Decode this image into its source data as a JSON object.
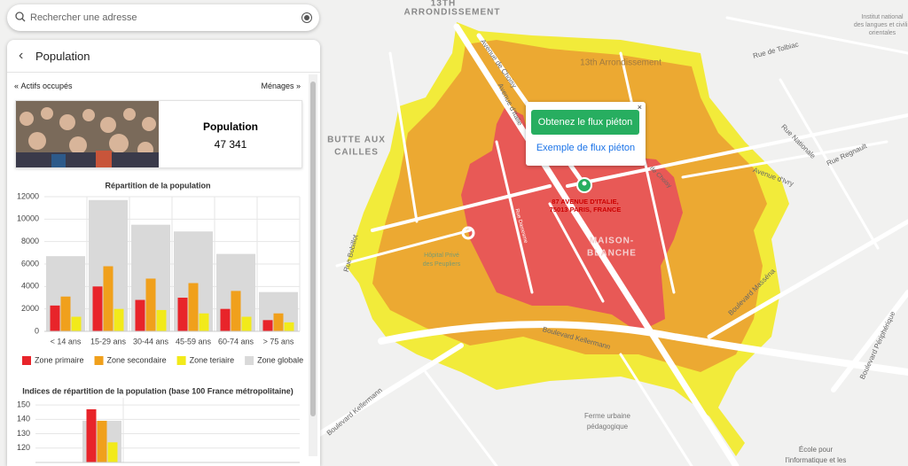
{
  "search": {
    "placeholder": "Rechercher une adresse"
  },
  "panel": {
    "title": "Population",
    "nav": {
      "previous": "Actifs occupés",
      "next": "Ménages"
    },
    "card": {
      "title": "Population",
      "value": "47 341"
    }
  },
  "chart_data": [
    {
      "type": "bar",
      "title": "Répartition de la population",
      "categories": [
        "< 14 ans",
        "15-29 ans",
        "30-44 ans",
        "45-59 ans",
        "60-74 ans",
        "> 75 ans"
      ],
      "series": [
        {
          "name": "Zone primaire",
          "color": "#e8242a",
          "values": [
            2300,
            4000,
            2800,
            3000,
            2000,
            1000
          ]
        },
        {
          "name": "Zone secondaire",
          "color": "#f0a01c",
          "values": [
            3100,
            5800,
            4700,
            4300,
            3600,
            1600
          ]
        },
        {
          "name": "Zone teriaire",
          "color": "#f2ea1a",
          "values": [
            1300,
            2000,
            1900,
            1600,
            1300,
            800
          ]
        },
        {
          "name": "Zone globale",
          "color": "#d9d9d9",
          "values": [
            6700,
            11700,
            9500,
            8900,
            6900,
            3500
          ]
        }
      ],
      "ylim": [
        0,
        12000
      ],
      "yticks": [
        0,
        2000,
        4000,
        6000,
        8000,
        10000,
        12000
      ],
      "grid": true,
      "legend": "bottom"
    },
    {
      "type": "bar",
      "title": "Indices de répartition de la population (base 100 France métropolitaine)",
      "categories": [
        null
      ],
      "series": [
        {
          "name": "Zone primaire",
          "color": "#e8242a",
          "values": [
            147
          ]
        },
        {
          "name": "Zone secondaire",
          "color": "#f0a01c",
          "values": [
            139
          ]
        },
        {
          "name": "Zone teriaire",
          "color": "#f2ea1a",
          "values": [
            124
          ]
        },
        {
          "name": "Zone globale",
          "color": "#d9d9d9",
          "values": [
            139
          ]
        }
      ],
      "ylim": [
        110,
        155
      ],
      "yticks": [
        120,
        130,
        140,
        150
      ],
      "grid": true
    }
  ],
  "popup": {
    "close": "×",
    "button": "Obtenez le flux piéton",
    "link": "Exemple de flux piéton"
  },
  "marker": {
    "address_line1": "87 AVENUE D'ITALIE,",
    "address_line2": "75013 PARIS, FRANCE"
  },
  "map": {
    "labels": [
      {
        "text": "13TH"
      },
      {
        "text": "ARRONDISSEMENT"
      },
      {
        "text": "Avenue de Choisy"
      },
      {
        "text": "13th Arrondissement"
      },
      {
        "text": "Rue de Tolbiac"
      },
      {
        "text": "Institut national"
      },
      {
        "text": "des langues et civilis"
      },
      {
        "text": "orientales"
      },
      {
        "text": "BUTTE AUX"
      },
      {
        "text": "CAILLES"
      },
      {
        "text": "Avenue d'Italie"
      },
      {
        "text": "Rue Nationale"
      },
      {
        "text": "Rue Regnault"
      },
      {
        "text": "Avenue d'Ivry"
      },
      {
        "text": "Rue Bobillot"
      },
      {
        "text": "Hôpital Privé"
      },
      {
        "text": "des Peupliers"
      },
      {
        "text": "MAISON-"
      },
      {
        "text": "BLANCHE"
      },
      {
        "text": "Boulevard Masséna"
      },
      {
        "text": "Boulevard Kellermann"
      },
      {
        "text": "Boulevard Kellermann"
      },
      {
        "text": "Boulevard Périphérique"
      },
      {
        "text": "Ferme urbaine"
      },
      {
        "text": "pédagogique"
      },
      {
        "text": "École pour"
      },
      {
        "text": "l'informatique et les"
      },
      {
        "text": "Rue Damesme"
      },
      {
        "text": "de Choisy"
      }
    ]
  }
}
